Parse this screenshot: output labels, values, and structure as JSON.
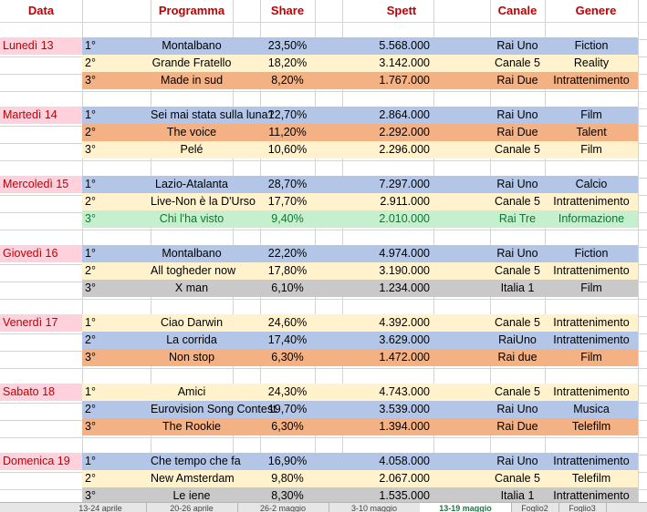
{
  "headers": {
    "data": "Data",
    "programma": "Programma",
    "share": "Share",
    "spett": "Spett",
    "canale": "Canale",
    "genere": "Genere"
  },
  "colors": {
    "blue": "#b4c6e7",
    "yellow": "#fff2cc",
    "orange": "#f4b183",
    "gray": "#c9c9c9",
    "green": "#c6efce",
    "pink": "#ffd1dc",
    "header_red": "#c00000"
  },
  "days": [
    {
      "day": "Lunedì 13",
      "rows": [
        {
          "rank": "1°",
          "prog": "Montalbano",
          "share": "23,50%",
          "spett": "5.568.000",
          "canale": "Rai Uno",
          "genere": "Fiction",
          "color": "blue"
        },
        {
          "rank": "2°",
          "prog": "Grande Fratello",
          "share": "18,20%",
          "spett": "3.142.000",
          "canale": "Canale 5",
          "genere": "Reality",
          "color": "yellow"
        },
        {
          "rank": "3°",
          "prog": "Made in sud",
          "share": "8,20%",
          "spett": "1.767.000",
          "canale": "Rai Due",
          "genere": "Intrattenimento",
          "color": "orange"
        }
      ]
    },
    {
      "day": "Martedì 14",
      "rows": [
        {
          "rank": "1°",
          "prog": "Sei mai stata sulla luna?",
          "share": "12,70%",
          "spett": "2.864.000",
          "canale": "Rai Uno",
          "genere": "Film",
          "color": "blue"
        },
        {
          "rank": "2°",
          "prog": "The voice",
          "share": "11,20%",
          "spett": "2.292.000",
          "canale": "Rai Due",
          "genere": "Talent",
          "color": "orange"
        },
        {
          "rank": "3°",
          "prog": "Pelé",
          "share": "10,60%",
          "spett": "2.296.000",
          "canale": "Canale 5",
          "genere": "Film",
          "color": "yellow"
        }
      ]
    },
    {
      "day": "Mercoledì 15",
      "rows": [
        {
          "rank": "1°",
          "prog": "Lazio-Atalanta",
          "share": "28,70%",
          "spett": "7.297.000",
          "canale": "Rai Uno",
          "genere": "Calcio",
          "color": "blue"
        },
        {
          "rank": "2°",
          "prog": "Live-Non è la D'Urso",
          "share": "17,70%",
          "spett": "2.911.000",
          "canale": "Canale 5",
          "genere": "Intrattenimento",
          "color": "yellow"
        },
        {
          "rank": "3°",
          "prog": "Chi l'ha visto",
          "share": "9,40%",
          "spett": "2.010.000",
          "canale": "Rai Tre",
          "genere": "Informazione",
          "color": "green"
        }
      ]
    },
    {
      "day": "Giovedì 16",
      "rows": [
        {
          "rank": "1°",
          "prog": "Montalbano",
          "share": "22,20%",
          "spett": "4.974.000",
          "canale": "Rai Uno",
          "genere": "Fiction",
          "color": "blue"
        },
        {
          "rank": "2°",
          "prog": "All togheder now",
          "share": "17,80%",
          "spett": "3.190.000",
          "canale": "Canale 5",
          "genere": "Intrattenimento",
          "color": "yellow"
        },
        {
          "rank": "3°",
          "prog": "X man",
          "share": "6,10%",
          "spett": "1.234.000",
          "canale": "Italia 1",
          "genere": "Film",
          "color": "gray"
        }
      ]
    },
    {
      "day": "Venerdì 17",
      "rows": [
        {
          "rank": "1°",
          "prog": "Ciao Darwin",
          "share": "24,60%",
          "spett": "4.392.000",
          "canale": "Canale 5",
          "genere": "Intrattenimento",
          "color": "yellow"
        },
        {
          "rank": "2°",
          "prog": "La corrida",
          "share": "17,40%",
          "spett": "3.629.000",
          "canale": "RaiUno",
          "genere": "Intrattenimento",
          "color": "blue"
        },
        {
          "rank": "3°",
          "prog": "Non stop",
          "share": "6,30%",
          "spett": "1.472.000",
          "canale": "Rai due",
          "genere": "Film",
          "color": "orange"
        }
      ]
    },
    {
      "day": "Sabato 18",
      "rows": [
        {
          "rank": "1°",
          "prog": "Amici",
          "share": "24,30%",
          "spett": "4.743.000",
          "canale": "Canale 5",
          "genere": "Intrattenimento",
          "color": "yellow"
        },
        {
          "rank": "2°",
          "prog": "Eurovision Song Contest",
          "share": "19,70%",
          "spett": "3.539.000",
          "canale": "Rai Uno",
          "genere": "Musica",
          "color": "blue"
        },
        {
          "rank": "3°",
          "prog": "The Rookie",
          "share": "6,30%",
          "spett": "1.394.000",
          "canale": "Rai Due",
          "genere": "Telefilm",
          "color": "orange"
        }
      ]
    },
    {
      "day": "Domenica 19",
      "rows": [
        {
          "rank": "1°",
          "prog": "Che tempo che fa",
          "share": "16,90%",
          "spett": "4.058.000",
          "canale": "Rai Uno",
          "genere": "Intrattenimento",
          "color": "blue"
        },
        {
          "rank": "2°",
          "prog": "New Amsterdam",
          "share": "9,80%",
          "spett": "2.067.000",
          "canale": "Canale 5",
          "genere": "Telefilm",
          "color": "yellow"
        },
        {
          "rank": "3°",
          "prog": "Le iene",
          "share": "8,30%",
          "spett": "1.535.000",
          "canale": "Italia 1",
          "genere": "Intrattenimento",
          "color": "gray"
        }
      ]
    }
  ],
  "tabs": [
    {
      "label": "13-24 aprile",
      "active": false
    },
    {
      "label": "20-26 aprile",
      "active": false
    },
    {
      "label": "26-2 maggio",
      "active": false
    },
    {
      "label": "3-10 maggio",
      "active": false
    },
    {
      "label": "13-19 maggio",
      "active": true
    },
    {
      "label": "Foglio2",
      "active": false
    },
    {
      "label": "Foglio3",
      "active": false
    }
  ]
}
